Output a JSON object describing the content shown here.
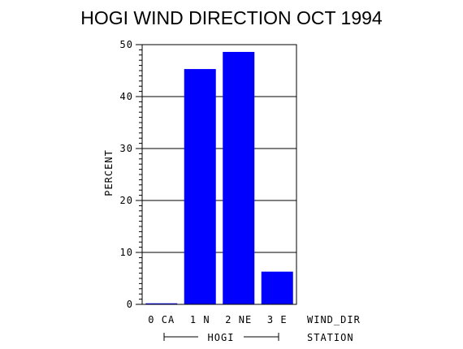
{
  "chart_data": {
    "type": "bar",
    "title": "HOGI WIND DIRECTION OCT 1994",
    "ylabel": "PERCENT",
    "xlabel": "WIND_DIR",
    "group_axis_label": "STATION",
    "group": "HOGI",
    "categories": [
      "0 CA",
      "1 N",
      "2 NE",
      "3 E"
    ],
    "values": [
      0.2,
      45.3,
      48.6,
      6.3
    ],
    "ylim": [
      0,
      50
    ],
    "yticks": [
      "0",
      "10",
      "20",
      "30",
      "40",
      "50"
    ],
    "grid": true,
    "bar_color": "#0000ff"
  }
}
